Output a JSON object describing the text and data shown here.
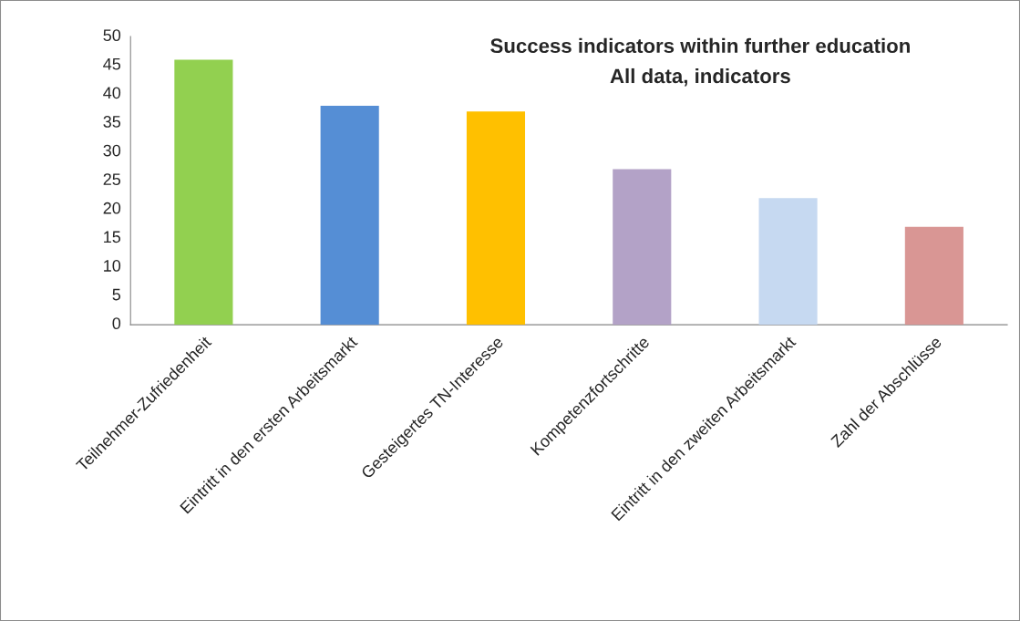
{
  "chart_data": {
    "type": "bar",
    "title": "Success indicators within further education",
    "subtitle": "All data, indicators",
    "categories": [
      "Teilnehmer-Zufriedenheit",
      "Eintritt in den ersten Arbeitsmarkt",
      "Gesteigertes TN-Interesse",
      "Kompetenzfortschritte",
      "Eintritt in den zweiten Arbeitsmarkt",
      "Zahl der Abschlüsse"
    ],
    "values": [
      46,
      38,
      37,
      27,
      22,
      17
    ],
    "colors": [
      "#92d050",
      "#558ed5",
      "#ffc000",
      "#b3a2c7",
      "#c6d9f1",
      "#d99694"
    ],
    "ylim": [
      0,
      50
    ],
    "yticks": [
      0,
      5,
      10,
      15,
      20,
      25,
      30,
      35,
      40,
      45,
      50
    ],
    "grid": false,
    "legend": false
  }
}
